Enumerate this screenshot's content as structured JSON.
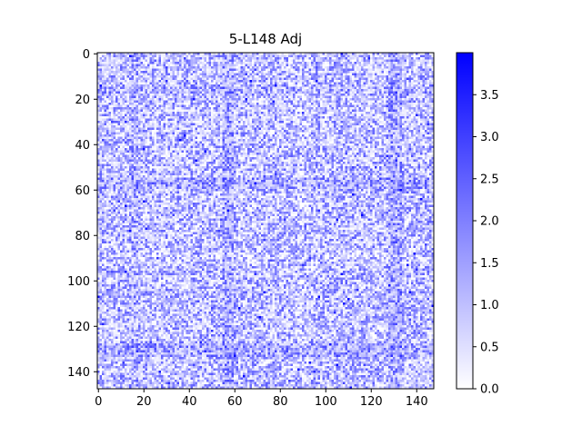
{
  "chart_data": {
    "type": "heatmap",
    "title": "5-L148 Adj",
    "xlabel": "",
    "ylabel": "",
    "rows": 148,
    "cols": 148,
    "xlim": [
      0,
      147
    ],
    "ylim": [
      147,
      0
    ],
    "x_ticks": [
      0,
      20,
      40,
      60,
      80,
      100,
      120,
      140
    ],
    "y_ticks": [
      0,
      20,
      40,
      60,
      80,
      100,
      120,
      140
    ],
    "colorscale": {
      "low": "#ffffff",
      "high": "#0000ff",
      "vmin": 0.0,
      "vmax": 4.0
    },
    "colorbar_ticks": [
      "0.0",
      "0.5",
      "1.0",
      "1.5",
      "2.0",
      "2.5",
      "3.0",
      "3.5"
    ],
    "value_summary": {
      "typical_range": [
        0.0,
        3.9
      ],
      "mean_estimate": 0.9,
      "note_bands_rows": [
        57,
        130
      ],
      "note_bands_cols": [
        57,
        130
      ]
    },
    "grid": false,
    "legend": "colorbar-right"
  }
}
